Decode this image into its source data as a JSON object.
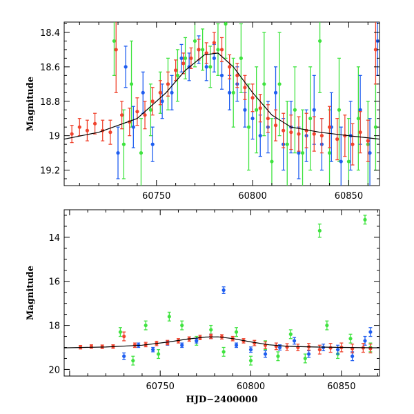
{
  "colors": {
    "green": "#3fe33f",
    "blue": "#1f5ef0",
    "red": "#f0432d",
    "model": "#000000"
  },
  "chart_data": [
    {
      "type": "scatter",
      "title": "",
      "xlabel": "",
      "ylabel": "Magnitude",
      "xlim": [
        60702,
        60866
      ],
      "ylim": [
        19.29,
        18.34
      ],
      "y_inverted": true,
      "grid": false,
      "xticks": [
        60750,
        60800,
        60850
      ],
      "xtick_labels": [
        "60750",
        "60800",
        "60850"
      ],
      "yticks": [
        18.4,
        18.6,
        18.8,
        19.0,
        19.2
      ],
      "ytick_labels": [
        "18.4",
        "18.6",
        "18.8",
        "19",
        "19.2"
      ],
      "series": [
        {
          "color": "green",
          "x": [
            60728,
            60733,
            60737,
            60742,
            60747,
            60752,
            60756,
            60761,
            60765,
            60770,
            60774,
            60778,
            60782,
            60786,
            60790,
            60794,
            60798,
            60802,
            60806,
            60810,
            60814,
            60818,
            60822,
            60826,
            60830,
            60835,
            60840,
            60845,
            60850,
            60855,
            60860,
            60864
          ],
          "y": [
            18.45,
            19.05,
            18.7,
            19.1,
            18.85,
            18.75,
            18.7,
            18.65,
            18.55,
            18.45,
            18.5,
            18.6,
            18.5,
            18.35,
            18.75,
            18.55,
            18.95,
            18.85,
            18.7,
            19.15,
            18.7,
            19.05,
            18.85,
            19.1,
            18.9,
            18.45,
            19.1,
            18.85,
            19.15,
            18.9,
            19.05,
            18.95
          ],
          "err": [
            0.2,
            0.2,
            0.25,
            0.2,
            0.15,
            0.12,
            0.15,
            0.15,
            0.12,
            0.15,
            0.12,
            0.12,
            0.15,
            0.2,
            0.2,
            0.2,
            0.25,
            0.25,
            0.3,
            0.25,
            0.3,
            0.25,
            0.25,
            0.25,
            0.3,
            0.3,
            0.25,
            0.3,
            0.25,
            0.3,
            0.25,
            0.25
          ]
        },
        {
          "color": "blue",
          "x": [
            60730,
            60734,
            60738,
            60743,
            60748,
            60753,
            60758,
            60763,
            60767,
            60772,
            60776,
            60780,
            60784,
            60788,
            60792,
            60796,
            60800,
            60804,
            60808,
            60812,
            60816,
            60820,
            60824,
            60828,
            60832,
            60836,
            60841,
            60846,
            60851,
            60856,
            60861,
            60865
          ],
          "y": [
            19.1,
            18.6,
            18.95,
            18.75,
            19.05,
            18.8,
            18.75,
            18.55,
            18.6,
            18.5,
            18.6,
            18.55,
            18.65,
            18.75,
            18.7,
            18.85,
            18.9,
            19.0,
            18.95,
            18.75,
            19.05,
            18.95,
            19.1,
            19.0,
            18.85,
            19.05,
            18.95,
            19.15,
            19.0,
            18.85,
            19.1,
            18.45
          ],
          "err": [
            0.15,
            0.12,
            0.12,
            0.12,
            0.1,
            0.1,
            0.1,
            0.08,
            0.08,
            0.08,
            0.08,
            0.08,
            0.08,
            0.1,
            0.1,
            0.1,
            0.12,
            0.12,
            0.15,
            0.15,
            0.15,
            0.15,
            0.15,
            0.15,
            0.2,
            0.15,
            0.2,
            0.2,
            0.2,
            0.2,
            0.2,
            0.2
          ]
        },
        {
          "color": "red",
          "x": [
            60706,
            60710,
            60714,
            60718,
            60722,
            60726,
            60729,
            60732,
            60736,
            60740,
            60744,
            60748,
            60752,
            60756,
            60760,
            60764,
            60768,
            60772,
            60776,
            60780,
            60784,
            60788,
            60792,
            60796,
            60800,
            60804,
            60808,
            60812,
            60816,
            60820,
            60824,
            60828,
            60832,
            60836,
            60840,
            60844,
            60848,
            60852,
            60856,
            60860,
            60864
          ],
          "y": [
            18.99,
            18.95,
            18.97,
            18.93,
            18.97,
            18.98,
            18.5,
            18.88,
            18.92,
            18.86,
            18.88,
            18.8,
            18.75,
            18.7,
            18.62,
            18.58,
            18.55,
            18.5,
            18.52,
            18.46,
            18.5,
            18.6,
            18.65,
            18.72,
            18.78,
            18.84,
            18.9,
            18.94,
            18.97,
            18.98,
            18.99,
            18.97,
            18.99,
            19.0,
            18.95,
            19.02,
            19.0,
            19.05,
            18.98,
            19.03,
            18.5
          ],
          "err": [
            0.05,
            0.05,
            0.06,
            0.06,
            0.06,
            0.07,
            0.25,
            0.08,
            0.08,
            0.08,
            0.08,
            0.08,
            0.07,
            0.07,
            0.06,
            0.06,
            0.06,
            0.06,
            0.06,
            0.06,
            0.07,
            0.07,
            0.07,
            0.07,
            0.08,
            0.08,
            0.08,
            0.09,
            0.1,
            0.1,
            0.1,
            0.1,
            0.1,
            0.1,
            0.12,
            0.12,
            0.12,
            0.12,
            0.12,
            0.12,
            0.2
          ]
        }
      ],
      "model": {
        "x": [
          60702,
          60720,
          60740,
          60755,
          60765,
          60775,
          60782,
          60790,
          60800,
          60810,
          60820,
          60835,
          60850,
          60866
        ],
        "y": [
          19.02,
          18.98,
          18.9,
          18.75,
          18.62,
          18.53,
          18.52,
          18.6,
          18.75,
          18.88,
          18.95,
          18.98,
          19.0,
          19.02
        ]
      }
    },
    {
      "type": "scatter",
      "title": "",
      "xlabel": "HJD−2400000",
      "ylabel": "Magnitude",
      "xlim": [
        60697,
        60871
      ],
      "ylim": [
        20.3,
        12.75
      ],
      "y_inverted": true,
      "grid": false,
      "xticks": [
        60750,
        60800,
        60850
      ],
      "xtick_labels": [
        "60750",
        "60800",
        "60850"
      ],
      "yticks": [
        14,
        16,
        18,
        20
      ],
      "ytick_labels": [
        "14",
        "16",
        "18",
        "20"
      ],
      "series": [
        {
          "color": "green",
          "x": [
            60728,
            60735,
            60742,
            60749,
            60755,
            60762,
            60770,
            60778,
            60785,
            60792,
            60800,
            60808,
            60815,
            60822,
            60830,
            60838,
            60842,
            60848,
            60855,
            60863,
            60866
          ],
          "y": [
            18.3,
            19.6,
            18.0,
            19.3,
            17.6,
            18.0,
            18.7,
            18.2,
            19.2,
            18.3,
            19.6,
            18.9,
            19.4,
            18.4,
            19.5,
            13.7,
            18.0,
            19.3,
            18.6,
            13.2,
            19.0
          ],
          "err": [
            0.2,
            0.2,
            0.2,
            0.2,
            0.2,
            0.2,
            0.2,
            0.2,
            0.2,
            0.2,
            0.2,
            0.2,
            0.2,
            0.2,
            0.2,
            0.3,
            0.2,
            0.2,
            0.2,
            0.2,
            0.2
          ]
        },
        {
          "color": "blue",
          "x": [
            60730,
            60738,
            60746,
            60754,
            60762,
            60770,
            60778,
            60785,
            60792,
            60800,
            60808,
            60816,
            60824,
            60832,
            60840,
            60848,
            60856,
            60863,
            60866
          ],
          "y": [
            19.4,
            18.9,
            19.1,
            18.8,
            18.9,
            18.7,
            18.5,
            16.4,
            18.9,
            19.1,
            19.3,
            19.0,
            18.7,
            19.3,
            19.0,
            19.1,
            19.4,
            18.7,
            18.3
          ],
          "err": [
            0.15,
            0.1,
            0.1,
            0.1,
            0.1,
            0.1,
            0.1,
            0.15,
            0.1,
            0.12,
            0.15,
            0.12,
            0.15,
            0.15,
            0.15,
            0.2,
            0.2,
            0.2,
            0.2
          ]
        },
        {
          "color": "red",
          "x": [
            60706,
            60712,
            60718,
            60724,
            60730,
            60736,
            60742,
            60748,
            60754,
            60760,
            60766,
            60772,
            60778,
            60784,
            60790,
            60796,
            60802,
            60808,
            60814,
            60820,
            60826,
            60832,
            60838,
            60844,
            60850,
            60856,
            60862,
            60866
          ],
          "y": [
            18.99,
            18.96,
            18.97,
            18.96,
            18.5,
            18.9,
            18.87,
            18.82,
            18.78,
            18.7,
            18.62,
            18.55,
            18.5,
            18.52,
            18.6,
            18.7,
            18.8,
            18.9,
            18.95,
            18.98,
            19.0,
            18.97,
            19.1,
            19.02,
            19.0,
            19.05,
            19.02,
            19.05
          ],
          "err": [
            0.08,
            0.08,
            0.08,
            0.08,
            0.2,
            0.1,
            0.1,
            0.1,
            0.1,
            0.1,
            0.1,
            0.1,
            0.1,
            0.1,
            0.1,
            0.1,
            0.12,
            0.15,
            0.15,
            0.15,
            0.15,
            0.15,
            0.2,
            0.2,
            0.2,
            0.2,
            0.2,
            0.2
          ]
        }
      ],
      "model": {
        "x": [
          60697,
          60720,
          60740,
          60755,
          60765,
          60775,
          60782,
          60790,
          60800,
          60810,
          60820,
          60835,
          60850,
          60871
        ],
        "y": [
          19.02,
          18.98,
          18.9,
          18.75,
          18.62,
          18.53,
          18.52,
          18.6,
          18.75,
          18.88,
          18.95,
          18.98,
          19.0,
          19.02
        ]
      }
    }
  ]
}
